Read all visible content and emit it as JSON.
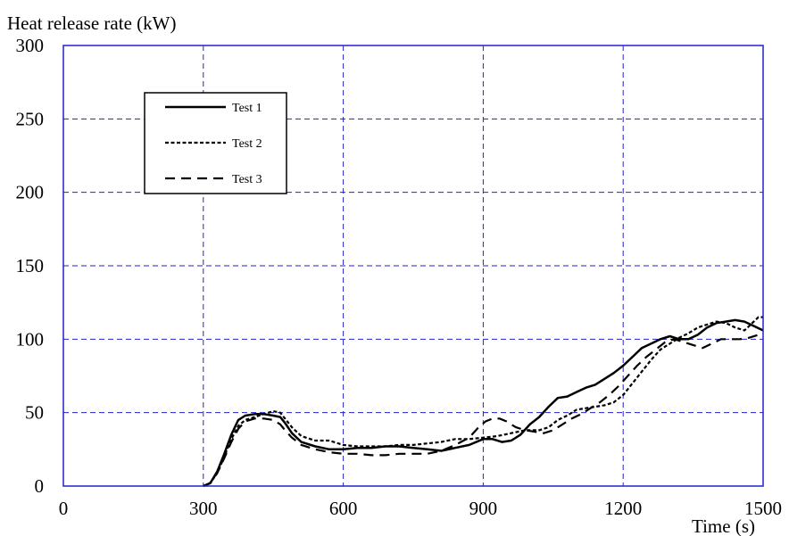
{
  "chart_data": {
    "type": "line",
    "title": "",
    "ylabel": "Heat release rate (kW)",
    "xlabel": "Time (s)",
    "xlim": [
      0,
      1500
    ],
    "ylim": [
      0,
      300
    ],
    "xticks": [
      0,
      300,
      600,
      900,
      1200,
      1500
    ],
    "yticks": [
      0,
      50,
      100,
      150,
      200,
      250,
      300
    ],
    "grid": true,
    "grid_color": "#2222cc",
    "frame_color": "#2222cc",
    "line_color": "#000000",
    "legend_position": "top-left",
    "series": [
      {
        "name": "Test 1",
        "style": "solid",
        "points": [
          [
            300,
            0
          ],
          [
            315,
            2
          ],
          [
            330,
            10
          ],
          [
            345,
            22
          ],
          [
            360,
            35
          ],
          [
            375,
            45
          ],
          [
            390,
            48
          ],
          [
            410,
            49
          ],
          [
            430,
            49
          ],
          [
            450,
            48
          ],
          [
            465,
            47
          ],
          [
            475,
            43
          ],
          [
            490,
            36
          ],
          [
            510,
            30
          ],
          [
            540,
            27
          ],
          [
            570,
            25
          ],
          [
            600,
            25
          ],
          [
            630,
            26
          ],
          [
            660,
            26
          ],
          [
            690,
            27
          ],
          [
            720,
            27
          ],
          [
            750,
            26
          ],
          [
            780,
            25
          ],
          [
            810,
            24
          ],
          [
            840,
            26
          ],
          [
            870,
            28
          ],
          [
            900,
            32
          ],
          [
            920,
            32
          ],
          [
            940,
            30
          ],
          [
            960,
            31
          ],
          [
            980,
            35
          ],
          [
            1000,
            42
          ],
          [
            1020,
            47
          ],
          [
            1040,
            54
          ],
          [
            1060,
            60
          ],
          [
            1080,
            61
          ],
          [
            1100,
            64
          ],
          [
            1120,
            67
          ],
          [
            1140,
            69
          ],
          [
            1160,
            73
          ],
          [
            1180,
            77
          ],
          [
            1200,
            82
          ],
          [
            1220,
            88
          ],
          [
            1240,
            94
          ],
          [
            1260,
            97
          ],
          [
            1280,
            100
          ],
          [
            1300,
            102
          ],
          [
            1320,
            100
          ],
          [
            1340,
            100
          ],
          [
            1360,
            103
          ],
          [
            1380,
            108
          ],
          [
            1400,
            111
          ],
          [
            1420,
            112
          ],
          [
            1440,
            113
          ],
          [
            1460,
            112
          ],
          [
            1480,
            109
          ],
          [
            1500,
            106
          ]
        ]
      },
      {
        "name": "Test 2",
        "style": "dotted",
        "points": [
          [
            300,
            0
          ],
          [
            315,
            2
          ],
          [
            330,
            9
          ],
          [
            345,
            20
          ],
          [
            360,
            32
          ],
          [
            375,
            41
          ],
          [
            390,
            45
          ],
          [
            410,
            47
          ],
          [
            430,
            49
          ],
          [
            450,
            51
          ],
          [
            465,
            50
          ],
          [
            475,
            46
          ],
          [
            490,
            40
          ],
          [
            510,
            34
          ],
          [
            540,
            31
          ],
          [
            570,
            31
          ],
          [
            600,
            28
          ],
          [
            630,
            27
          ],
          [
            660,
            27
          ],
          [
            690,
            27
          ],
          [
            720,
            28
          ],
          [
            750,
            28
          ],
          [
            780,
            29
          ],
          [
            810,
            30
          ],
          [
            840,
            32
          ],
          [
            870,
            32
          ],
          [
            900,
            33
          ],
          [
            930,
            34
          ],
          [
            960,
            36
          ],
          [
            990,
            38
          ],
          [
            1020,
            38
          ],
          [
            1040,
            40
          ],
          [
            1060,
            45
          ],
          [
            1080,
            48
          ],
          [
            1100,
            52
          ],
          [
            1120,
            53
          ],
          [
            1140,
            54
          ],
          [
            1160,
            55
          ],
          [
            1180,
            57
          ],
          [
            1200,
            62
          ],
          [
            1220,
            70
          ],
          [
            1240,
            78
          ],
          [
            1260,
            86
          ],
          [
            1280,
            93
          ],
          [
            1300,
            97
          ],
          [
            1320,
            101
          ],
          [
            1340,
            104
          ],
          [
            1360,
            108
          ],
          [
            1380,
            110
          ],
          [
            1400,
            112
          ],
          [
            1420,
            111
          ],
          [
            1440,
            108
          ],
          [
            1460,
            106
          ],
          [
            1480,
            112
          ],
          [
            1490,
            115
          ],
          [
            1500,
            115
          ]
        ]
      },
      {
        "name": "Test 3",
        "style": "dashed",
        "points": [
          [
            300,
            0
          ],
          [
            315,
            2
          ],
          [
            330,
            9
          ],
          [
            345,
            19
          ],
          [
            360,
            30
          ],
          [
            375,
            39
          ],
          [
            390,
            44
          ],
          [
            410,
            46
          ],
          [
            430,
            46
          ],
          [
            450,
            45
          ],
          [
            465,
            42
          ],
          [
            475,
            38
          ],
          [
            490,
            33
          ],
          [
            510,
            28
          ],
          [
            540,
            25
          ],
          [
            570,
            23
          ],
          [
            600,
            22
          ],
          [
            630,
            22
          ],
          [
            660,
            21
          ],
          [
            690,
            21
          ],
          [
            720,
            22
          ],
          [
            750,
            22
          ],
          [
            780,
            22
          ],
          [
            810,
            24
          ],
          [
            840,
            28
          ],
          [
            870,
            33
          ],
          [
            890,
            40
          ],
          [
            905,
            44
          ],
          [
            920,
            46
          ],
          [
            935,
            46
          ],
          [
            950,
            44
          ],
          [
            970,
            40
          ],
          [
            990,
            38
          ],
          [
            1010,
            37
          ],
          [
            1030,
            36
          ],
          [
            1050,
            38
          ],
          [
            1070,
            42
          ],
          [
            1090,
            46
          ],
          [
            1110,
            49
          ],
          [
            1130,
            53
          ],
          [
            1150,
            57
          ],
          [
            1170,
            62
          ],
          [
            1190,
            68
          ],
          [
            1210,
            75
          ],
          [
            1230,
            82
          ],
          [
            1250,
            88
          ],
          [
            1270,
            93
          ],
          [
            1290,
            98
          ],
          [
            1310,
            100
          ],
          [
            1330,
            98
          ],
          [
            1350,
            96
          ],
          [
            1370,
            94
          ],
          [
            1390,
            97
          ],
          [
            1410,
            100
          ],
          [
            1430,
            100
          ],
          [
            1450,
            100
          ],
          [
            1470,
            101
          ],
          [
            1490,
            103
          ],
          [
            1500,
            103
          ]
        ]
      }
    ]
  }
}
